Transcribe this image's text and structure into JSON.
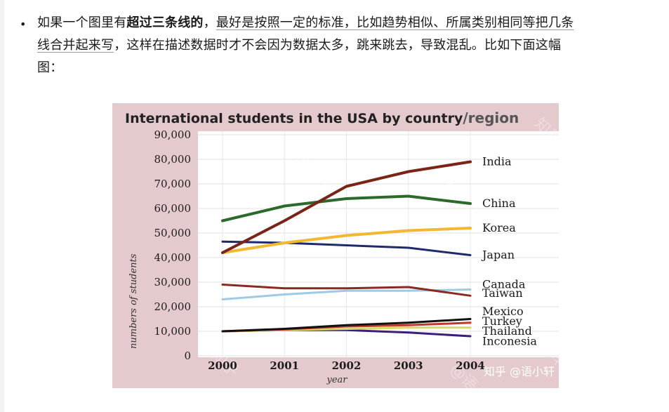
{
  "text": {
    "bullet": "•",
    "p1": "如果一个图里有",
    "p1_bold": "超过三条线的",
    "p1_sep": "，",
    "p1_u1": "最好是按照一定的标准，比如趋势相似、所属类别相同等把几条",
    "p2_u": "线合并起来写",
    "p2_rest": "，这样在描述数据时才不会因为数据太多，跳来跳去，导致混乱。比如下面这幅",
    "p3": "图："
  },
  "watermarks": {
    "brand": "知乎 @语小轩",
    "w1": "知乎",
    "w2": "@语小轩"
  },
  "colors": {
    "chart_bg": "#e4c9cd",
    "plot_bg": "#ffffff",
    "India": "#7a2418",
    "China": "#2b6a2a",
    "Korea": "#f2b830",
    "Japan": "#1f2a6a",
    "Canada": "#8a2a22",
    "Taiwan": "#9ccbe8",
    "Mexico": "#111111",
    "Turkey": "#c0392b",
    "Thailand": "#d8d860",
    "Inconesia": "#3b1f7a"
  },
  "chart_data": {
    "type": "line",
    "title": "International students in the USA by country",
    "title_suffix": "/region",
    "xlabel": "year",
    "ylabel": "numbers of students",
    "x": [
      2000,
      2001,
      2002,
      2003,
      2004
    ],
    "xticks": [
      "2000",
      "2001",
      "2002",
      "2003",
      "2004"
    ],
    "ylim": [
      0,
      90000
    ],
    "yticks": [
      "0",
      "10,000",
      "20,000",
      "30,000",
      "40,000",
      "50,000",
      "60,000",
      "70,000",
      "80,000",
      "90,000"
    ],
    "grid": true,
    "series": [
      {
        "name": "India",
        "values": [
          42000,
          55000,
          69000,
          75000,
          79000
        ]
      },
      {
        "name": "China",
        "values": [
          55000,
          61000,
          64000,
          65000,
          62000
        ]
      },
      {
        "name": "Korea",
        "values": [
          42000,
          46000,
          49000,
          51000,
          52000
        ]
      },
      {
        "name": "Japan",
        "values": [
          46500,
          46000,
          45000,
          44000,
          41000
        ]
      },
      {
        "name": "Canada",
        "values": [
          29000,
          27500,
          27500,
          28000,
          24500
        ]
      },
      {
        "name": "Taiwan",
        "values": [
          23000,
          25000,
          26500,
          26500,
          27000
        ]
      },
      {
        "name": "Mexico",
        "values": [
          10000,
          11000,
          12500,
          13500,
          15000
        ]
      },
      {
        "name": "Turkey",
        "values": [
          10000,
          10800,
          12000,
          12500,
          13500
        ]
      },
      {
        "name": "Thailand",
        "values": [
          10000,
          10500,
          11000,
          11500,
          11500
        ]
      },
      {
        "name": "Inconesia",
        "values": [
          10000,
          10500,
          10500,
          9500,
          8000
        ]
      }
    ],
    "label_order": [
      "India",
      "China",
      "Korea",
      "Japan",
      "Canada",
      "Taiwan",
      "Mexico",
      "Turkey",
      "Thailand",
      "Inconesia"
    ]
  }
}
